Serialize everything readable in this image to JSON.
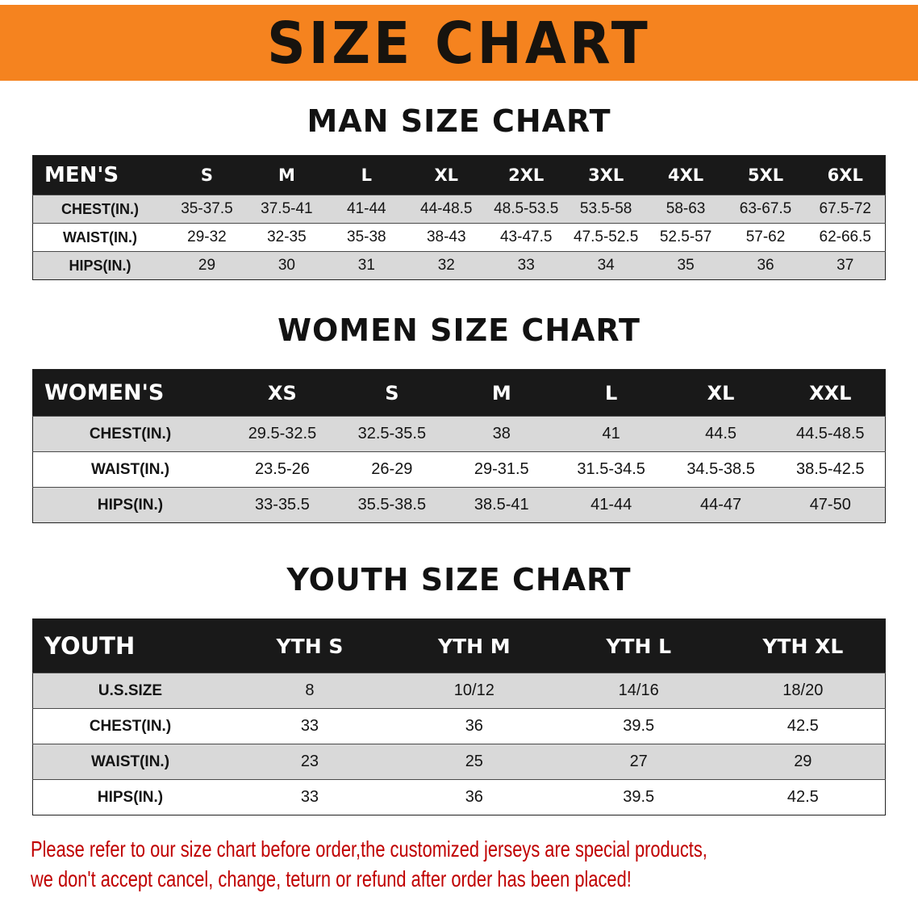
{
  "banner": {
    "title": "SIZE CHART"
  },
  "sections": [
    {
      "heading": "MAN SIZE CHART",
      "table": {
        "header": [
          "MEN'S",
          "S",
          "M",
          "L",
          "XL",
          "2XL",
          "3XL",
          "4XL",
          "5XL",
          "6XL"
        ],
        "rows": [
          [
            "CHEST(IN.)",
            "35-37.5",
            "37.5-41",
            "41-44",
            "44-48.5",
            "48.5-53.5",
            "53.5-58",
            "58-63",
            "63-67.5",
            "67.5-72"
          ],
          [
            "WAIST(IN.)",
            "29-32",
            "32-35",
            "35-38",
            "38-43",
            "43-47.5",
            "47.5-52.5",
            "52.5-57",
            "57-62",
            "62-66.5"
          ],
          [
            "HIPS(IN.)",
            "29",
            "30",
            "31",
            "32",
            "33",
            "34",
            "35",
            "36",
            "37"
          ]
        ]
      }
    },
    {
      "heading": "WOMEN SIZE CHART",
      "table": {
        "header": [
          "WOMEN'S",
          "XS",
          "S",
          "M",
          "L",
          "XL",
          "XXL"
        ],
        "rows": [
          [
            "CHEST(IN.)",
            "29.5-32.5",
            "32.5-35.5",
            "38",
            "41",
            "44.5",
            "44.5-48.5"
          ],
          [
            "WAIST(IN.)",
            "23.5-26",
            "26-29",
            "29-31.5",
            "31.5-34.5",
            "34.5-38.5",
            "38.5-42.5"
          ],
          [
            "HIPS(IN.)",
            "33-35.5",
            "35.5-38.5",
            "38.5-41",
            "41-44",
            "44-47",
            "47-50"
          ]
        ]
      }
    },
    {
      "heading": "YOUTH SIZE CHART",
      "table": {
        "header": [
          "YOUTH",
          "YTH S",
          "YTH M",
          "YTH L",
          "YTH XL"
        ],
        "rows": [
          [
            "U.S.SIZE",
            "8",
            "10/12",
            "14/16",
            "18/20"
          ],
          [
            "CHEST(IN.)",
            "33",
            "36",
            "39.5",
            "42.5"
          ],
          [
            "WAIST(IN.)",
            "23",
            "25",
            "27",
            "29"
          ],
          [
            "HIPS(IN.)",
            "33",
            "36",
            "39.5",
            "42.5"
          ]
        ]
      }
    }
  ],
  "disclaimer": {
    "line1": "Please refer to our size chart before order,the customized jerseys are special products,",
    "line2": "we don't accept cancel, change, teturn or refund after order has been placed!"
  },
  "colors": {
    "banner_orange": "#f5831f",
    "table_header_black": "#191919",
    "row_gray": "#d9d9d9",
    "disclaimer_red": "#c00000"
  }
}
